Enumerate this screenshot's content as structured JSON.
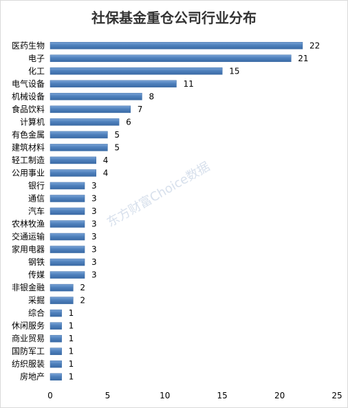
{
  "chart_data": {
    "type": "bar",
    "orientation": "horizontal",
    "title": "社保基金重仓公司行业分布",
    "categories": [
      "医药生物",
      "电子",
      "化工",
      "电气设备",
      "机械设备",
      "食品饮料",
      "计算机",
      "有色金属",
      "建筑材料",
      "轻工制造",
      "公用事业",
      "银行",
      "通信",
      "汽车",
      "农林牧渔",
      "交通运输",
      "家用电器",
      "钢铁",
      "传媒",
      "非银金融",
      "采掘",
      "综合",
      "休闲服务",
      "商业贸易",
      "国防军工",
      "纺织服装",
      "房地产"
    ],
    "values": [
      22,
      21,
      15,
      11,
      8,
      7,
      6,
      5,
      5,
      4,
      4,
      3,
      3,
      3,
      3,
      3,
      3,
      3,
      3,
      2,
      2,
      1,
      1,
      1,
      1,
      1,
      1
    ],
    "xlim": [
      0,
      25
    ],
    "xticks": [
      0,
      5,
      10,
      15,
      20,
      25
    ],
    "xlabel": "",
    "ylabel": "",
    "grid": false,
    "bar_color": "#4f81bd",
    "data_labels": true
  },
  "watermark": "东方财富Choice数据"
}
